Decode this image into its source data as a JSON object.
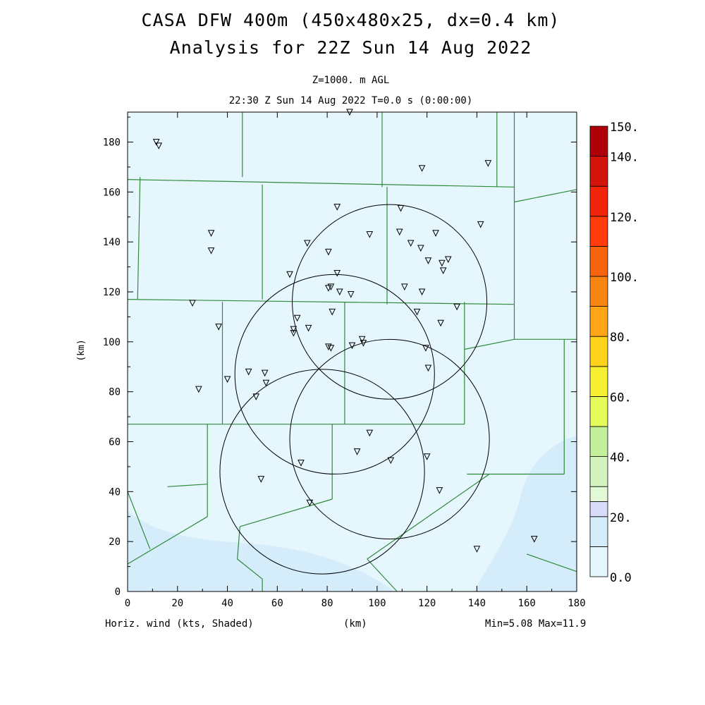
{
  "title": {
    "line1": "CASA DFW 400m (450x480x25, dx=0.4 km)",
    "line2": "Analysis for 22Z Sun 14 Aug 2022"
  },
  "subtitle": {
    "level": "Z=1000. m AGL",
    "time": "22:30 Z Sun 14 Aug 2022   T=0.0 s (0:00:00)"
  },
  "axes": {
    "x_label": "(km)",
    "y_label": "(km)",
    "x_ticks": [
      "0",
      "20",
      "40",
      "60",
      "80",
      "100",
      "120",
      "140",
      "160",
      "180"
    ],
    "y_ticks": [
      "0",
      "20",
      "40",
      "60",
      "80",
      "100",
      "120",
      "140",
      "160",
      "180"
    ],
    "x_range": [
      0,
      180
    ],
    "y_range": [
      0,
      192
    ]
  },
  "footer": {
    "field": "Horiz. wind (kts, Shaded)",
    "x_unit": "(km)",
    "stats": "Min=5.08 Max=11.9"
  },
  "colorbar": {
    "labels": [
      "0.0",
      "20.",
      "40.",
      "60.",
      "80.",
      "100.",
      "120.",
      "140.",
      "150."
    ],
    "label_values": [
      0,
      20,
      40,
      60,
      80,
      100,
      120,
      140,
      150
    ],
    "bounds": [
      0,
      10,
      20,
      25,
      30,
      40,
      50,
      60,
      70,
      80,
      90,
      100,
      110,
      120,
      130,
      140,
      150
    ],
    "colors": [
      "#e6f6fd",
      "#d5ecfb",
      "#d8dcf9",
      "#e3f9d6",
      "#d3f4be",
      "#c3f09a",
      "#e4fb59",
      "#f6ef32",
      "#ffd21c",
      "#ffa517",
      "#fa8612",
      "#f8630d",
      "#ff3c0a",
      "#f0250a",
      "#d3140b",
      "#ad0008"
    ]
  },
  "chart_data": {
    "type": "map",
    "variable": "Horizontal wind speed (kts)",
    "min": 5.08,
    "max": 11.9,
    "radar_range_rings": [
      {
        "center": [
          78,
          48
        ],
        "radius": 41
      },
      {
        "center": [
          83,
          87
        ],
        "radius": 40
      },
      {
        "center": [
          105,
          61
        ],
        "radius": 40
      },
      {
        "center": [
          105,
          116
        ],
        "radius": 39
      }
    ],
    "stations": [
      [
        11.5,
        180
      ],
      [
        12.5,
        178.5
      ],
      [
        89,
        192
      ],
      [
        118,
        169.5
      ],
      [
        144.5,
        171.5
      ],
      [
        84,
        154
      ],
      [
        109.5,
        153.5
      ],
      [
        33.5,
        143.5
      ],
      [
        97,
        143
      ],
      [
        109,
        144
      ],
      [
        123.5,
        143.5
      ],
      [
        141.5,
        147
      ],
      [
        33.5,
        136.5
      ],
      [
        72,
        139.5
      ],
      [
        80.5,
        136
      ],
      [
        113.5,
        139.5
      ],
      [
        117.5,
        137.5
      ],
      [
        120.5,
        132.5
      ],
      [
        126,
        131.5
      ],
      [
        128.5,
        133
      ],
      [
        126.5,
        128.5
      ],
      [
        65,
        127
      ],
      [
        84,
        127.5
      ],
      [
        80.5,
        121.5
      ],
      [
        81.5,
        122
      ],
      [
        85,
        120
      ],
      [
        89.5,
        119
      ],
      [
        111,
        122
      ],
      [
        118,
        120
      ],
      [
        26,
        115.5
      ],
      [
        36.5,
        106
      ],
      [
        68,
        109.5
      ],
      [
        72.5,
        105.5
      ],
      [
        66.5,
        105
      ],
      [
        66.5,
        103.5
      ],
      [
        82,
        112
      ],
      [
        116,
        112
      ],
      [
        132,
        114
      ],
      [
        125.5,
        107.5
      ],
      [
        94,
        101
      ],
      [
        94.5,
        99.5
      ],
      [
        90,
        98.5
      ],
      [
        80.5,
        98
      ],
      [
        81.5,
        97.5
      ],
      [
        119.5,
        97.5
      ],
      [
        120.5,
        89.5
      ],
      [
        48.5,
        88
      ],
      [
        55,
        87.5
      ],
      [
        55.5,
        83.5
      ],
      [
        40,
        85
      ],
      [
        51.5,
        78
      ],
      [
        28.5,
        81
      ],
      [
        97,
        63.5
      ],
      [
        92,
        56
      ],
      [
        69.5,
        51.5
      ],
      [
        105.5,
        52.5
      ],
      [
        120,
        54
      ],
      [
        53.5,
        45
      ],
      [
        125,
        40.5
      ],
      [
        73,
        35.5
      ],
      [
        140,
        17
      ],
      [
        163,
        21
      ]
    ],
    "boundaries": [
      [
        [
          0,
          165
        ],
        [
          155,
          162
        ]
      ],
      [
        [
          155,
          162
        ],
        [
          155,
          192
        ]
      ],
      [
        [
          155,
          162
        ],
        [
          155,
          156
        ]
      ],
      [
        [
          155,
          156
        ],
        [
          180,
          161
        ]
      ],
      [
        [
          0,
          117
        ],
        [
          155,
          115
        ]
      ],
      [
        [
          155,
          115
        ],
        [
          155,
          156
        ]
      ],
      [
        [
          155,
          115
        ],
        [
          155,
          101
        ]
      ],
      [
        [
          155,
          101
        ],
        [
          180,
          101
        ]
      ],
      [
        [
          46,
          166
        ],
        [
          46,
          192
        ]
      ],
      [
        [
          102,
          192
        ],
        [
          102,
          162
        ]
      ],
      [
        [
          148,
          192
        ],
        [
          148,
          162
        ]
      ],
      [
        [
          5,
          166
        ],
        [
          4,
          117
        ]
      ],
      [
        [
          54,
          163
        ],
        [
          54,
          117
        ]
      ],
      [
        [
          104,
          162
        ],
        [
          104,
          115
        ]
      ],
      [
        [
          38,
          116
        ],
        [
          38,
          67
        ]
      ],
      [
        [
          0,
          67
        ],
        [
          135,
          67
        ]
      ],
      [
        [
          87,
          116
        ],
        [
          87,
          67
        ]
      ],
      [
        [
          135,
          116
        ],
        [
          135,
          67
        ]
      ],
      [
        [
          155,
          101
        ],
        [
          135,
          97
        ]
      ],
      [
        [
          175,
          101
        ],
        [
          175,
          47
        ]
      ],
      [
        [
          175,
          47
        ],
        [
          136,
          47
        ]
      ],
      [
        [
          32,
          67
        ],
        [
          32,
          30
        ]
      ],
      [
        [
          32,
          43
        ],
        [
          16,
          42
        ]
      ],
      [
        [
          16,
          42
        ],
        [
          16,
          42
        ]
      ],
      [
        [
          0,
          40
        ],
        [
          9,
          17
        ]
      ],
      [
        [
          82,
          67
        ],
        [
          82,
          37
        ]
      ],
      [
        [
          82,
          37
        ],
        [
          45,
          26
        ]
      ],
      [
        [
          32,
          30
        ],
        [
          0,
          11
        ]
      ],
      [
        [
          145,
          47
        ],
        [
          96,
          13
        ]
      ],
      [
        [
          45,
          26
        ],
        [
          44,
          13
        ]
      ],
      [
        [
          44,
          13
        ],
        [
          54,
          5
        ]
      ],
      [
        [
          54,
          5
        ],
        [
          54,
          0
        ]
      ],
      [
        [
          96,
          13
        ],
        [
          108,
          0
        ]
      ],
      [
        [
          160,
          15
        ],
        [
          180,
          8
        ]
      ]
    ],
    "shaded_regions": [
      {
        "level": "10-20",
        "description": "lower-left corner and right/lower-right edge"
      }
    ]
  }
}
